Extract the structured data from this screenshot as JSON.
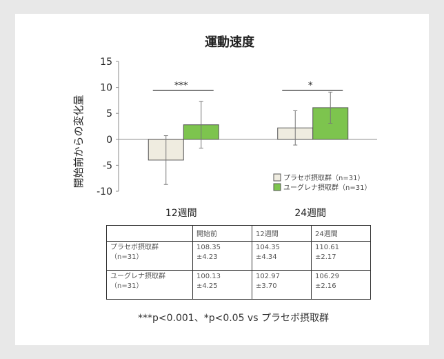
{
  "chart_data": {
    "type": "bar",
    "title": "運動速度",
    "ylabel": "開始前からの変化量",
    "xlabel": "",
    "ylim": [
      -10,
      15
    ],
    "yticks": [
      -10,
      -5,
      0,
      5,
      10,
      15
    ],
    "categories": [
      "12週間",
      "24週間"
    ],
    "grid": false,
    "legend_position": "bottom-right",
    "series": [
      {
        "name": "プラセボ摂取群（n=31）",
        "values": [
          -4.0,
          2.2
        ],
        "errors": [
          4.7,
          3.3
        ],
        "color": "#efece0"
      },
      {
        "name": "ユーグレナ摂取群（n=31）",
        "values": [
          2.8,
          6.1
        ],
        "errors": [
          4.5,
          3.0
        ],
        "color": "#7dc44e"
      }
    ],
    "annotations": [
      {
        "category": "12週間",
        "text": "***"
      },
      {
        "category": "24週間",
        "text": "*"
      }
    ]
  },
  "table": {
    "headers": [
      "",
      "開始前",
      "12週間",
      "24週間"
    ],
    "rows": [
      {
        "label": [
          "プラセボ摂取群",
          "（n=31）"
        ],
        "cells": [
          [
            "108.35",
            "±4.23"
          ],
          [
            "104.35",
            "±4.34"
          ],
          [
            "110.61",
            "±2.17"
          ]
        ]
      },
      {
        "label": [
          "ユーグレナ摂取群",
          "（n=31）"
        ],
        "cells": [
          [
            "100.13",
            "±4.25"
          ],
          [
            "102.97",
            "±3.70"
          ],
          [
            "106.29",
            "±2.16"
          ]
        ]
      }
    ]
  },
  "footnote": "***p<0.001、*p<0.05 vs プラセボ摂取群"
}
